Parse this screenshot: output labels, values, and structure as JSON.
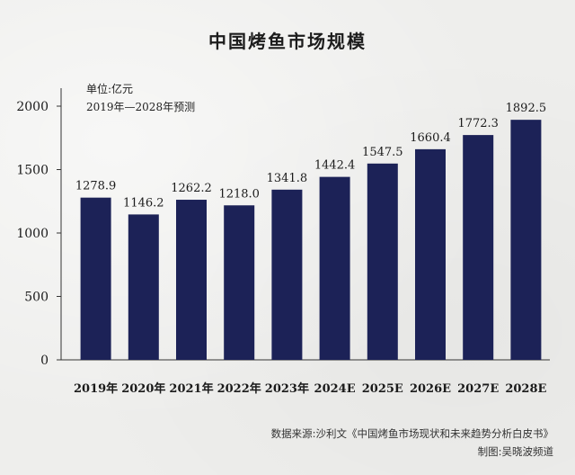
{
  "chart_data": {
    "type": "bar",
    "title": "中国烤鱼市场规模",
    "unit_label": "单位:亿元",
    "period_label": "2019年—2028年预测",
    "categories": [
      "2019年",
      "2020年",
      "2021年",
      "2022年",
      "2023年",
      "2024E",
      "2025E",
      "2026E",
      "2027E",
      "2028E"
    ],
    "values": [
      1278.9,
      1146.2,
      1262.2,
      1218.0,
      1341.8,
      1442.4,
      1547.5,
      1660.4,
      1772.3,
      1892.5
    ],
    "value_labels": [
      "1278.9",
      "1146.2",
      "1262.2",
      "1218.0",
      "1341.8",
      "1442.4",
      "1547.5",
      "1660.4",
      "1772.3",
      "1892.5"
    ],
    "yticks": [
      0,
      500,
      1000,
      1500,
      2000
    ],
    "ylim": [
      0,
      2000
    ],
    "grid": false,
    "bar_color": "#1c2257",
    "xlabel": "",
    "ylabel": ""
  },
  "footer": {
    "source": "数据来源:沙利文《中国烤鱼市场现状和未来趋势分析白皮书》",
    "maker": "制图:吴晓波频道"
  }
}
